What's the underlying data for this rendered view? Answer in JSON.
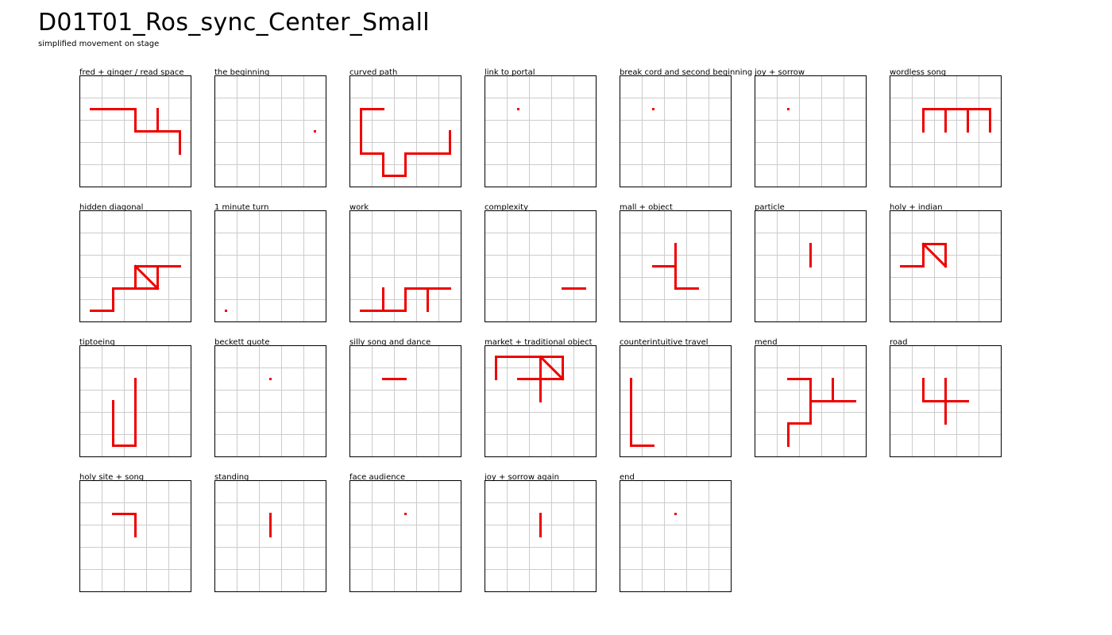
{
  "header": {
    "title": "D01T01_Ros_sync_Center_Small",
    "subtitle": "simplified movement on stage"
  },
  "colors": {
    "path": "#ee0000",
    "grid": "#cccccc",
    "frame": "#000000"
  },
  "grid_cells": 5,
  "panels": [
    {
      "label": "fred + ginger / read space",
      "segments": [
        [
          [
            0.5,
            1.5
          ],
          [
            2.5,
            1.5
          ]
        ],
        [
          [
            2.5,
            1.5
          ],
          [
            2.5,
            2.5
          ]
        ],
        [
          [
            2.5,
            2.5
          ],
          [
            4.5,
            2.5
          ]
        ],
        [
          [
            3.5,
            1.5
          ],
          [
            3.5,
            2.5
          ]
        ],
        [
          [
            4.5,
            2.5
          ],
          [
            4.5,
            3.5
          ]
        ]
      ],
      "dots": []
    },
    {
      "label": "the beginning",
      "segments": [],
      "dots": [
        [
          4.5,
          2.5
        ]
      ]
    },
    {
      "label": "curved path",
      "segments": [
        [
          [
            1.5,
            1.5
          ],
          [
            0.5,
            1.5
          ]
        ],
        [
          [
            0.5,
            1.5
          ],
          [
            0.5,
            3.5
          ]
        ],
        [
          [
            0.5,
            3.5
          ],
          [
            1.5,
            3.5
          ]
        ],
        [
          [
            1.5,
            3.5
          ],
          [
            1.5,
            4.5
          ]
        ],
        [
          [
            1.5,
            4.5
          ],
          [
            2.5,
            4.5
          ]
        ],
        [
          [
            2.5,
            4.5
          ],
          [
            2.5,
            3.5
          ]
        ],
        [
          [
            2.5,
            3.5
          ],
          [
            4.5,
            3.5
          ]
        ],
        [
          [
            4.5,
            3.5
          ],
          [
            4.5,
            2.5
          ]
        ]
      ],
      "dots": []
    },
    {
      "label": "link to portal",
      "segments": [],
      "dots": [
        [
          1.5,
          1.5
        ]
      ]
    },
    {
      "label": "break cord and second beginning",
      "segments": [],
      "dots": [
        [
          1.5,
          1.5
        ]
      ]
    },
    {
      "label": "joy + sorrow",
      "segments": [],
      "dots": [
        [
          1.5,
          1.5
        ]
      ]
    },
    {
      "label": "wordless song",
      "segments": [
        [
          [
            1.5,
            1.5
          ],
          [
            4.5,
            1.5
          ]
        ],
        [
          [
            1.5,
            1.5
          ],
          [
            1.5,
            2.5
          ]
        ],
        [
          [
            2.5,
            1.5
          ],
          [
            2.5,
            2.5
          ]
        ],
        [
          [
            3.5,
            1.5
          ],
          [
            3.5,
            2.5
          ]
        ],
        [
          [
            4.5,
            1.5
          ],
          [
            4.5,
            2.5
          ]
        ]
      ],
      "dots": []
    },
    {
      "label": "hidden diagonal",
      "segments": [
        [
          [
            0.5,
            4.5
          ],
          [
            1.5,
            4.5
          ]
        ],
        [
          [
            1.5,
            4.5
          ],
          [
            1.5,
            3.5
          ]
        ],
        [
          [
            1.5,
            3.5
          ],
          [
            3.5,
            3.5
          ]
        ],
        [
          [
            2.5,
            3.5
          ],
          [
            2.5,
            2.5
          ]
        ],
        [
          [
            2.5,
            2.5
          ],
          [
            4.5,
            2.5
          ]
        ],
        [
          [
            3.5,
            2.5
          ],
          [
            3.5,
            3.5
          ]
        ],
        [
          [
            2.5,
            2.5
          ],
          [
            3.5,
            3.5
          ]
        ]
      ],
      "dots": []
    },
    {
      "label": "1 minute turn",
      "segments": [],
      "dots": [
        [
          0.5,
          4.5
        ]
      ]
    },
    {
      "label": "work",
      "segments": [
        [
          [
            0.5,
            4.5
          ],
          [
            2.5,
            4.5
          ]
        ],
        [
          [
            1.5,
            3.5
          ],
          [
            1.5,
            4.5
          ]
        ],
        [
          [
            2.5,
            4.5
          ],
          [
            2.5,
            3.5
          ]
        ],
        [
          [
            2.5,
            3.5
          ],
          [
            4.5,
            3.5
          ]
        ],
        [
          [
            3.5,
            3.5
          ],
          [
            3.5,
            4.5
          ]
        ]
      ],
      "dots": []
    },
    {
      "label": "complexity",
      "segments": [
        [
          [
            3.5,
            3.5
          ],
          [
            4.5,
            3.5
          ]
        ]
      ],
      "dots": []
    },
    {
      "label": "mall + object",
      "segments": [
        [
          [
            1.5,
            2.5
          ],
          [
            2.5,
            2.5
          ]
        ],
        [
          [
            2.5,
            1.5
          ],
          [
            2.5,
            3.5
          ]
        ],
        [
          [
            2.5,
            3.5
          ],
          [
            3.5,
            3.5
          ]
        ]
      ],
      "dots": []
    },
    {
      "label": "particle",
      "segments": [
        [
          [
            2.5,
            1.5
          ],
          [
            2.5,
            2.5
          ]
        ]
      ],
      "dots": []
    },
    {
      "label": "holy + indian",
      "segments": [
        [
          [
            0.5,
            2.5
          ],
          [
            1.5,
            2.5
          ]
        ],
        [
          [
            1.5,
            2.5
          ],
          [
            1.5,
            1.5
          ]
        ],
        [
          [
            1.5,
            1.5
          ],
          [
            2.5,
            1.5
          ]
        ],
        [
          [
            2.5,
            1.5
          ],
          [
            2.5,
            2.5
          ]
        ],
        [
          [
            1.5,
            1.5
          ],
          [
            2.5,
            2.5
          ]
        ]
      ],
      "dots": []
    },
    {
      "label": "tiptoeing",
      "segments": [
        [
          [
            1.5,
            2.5
          ],
          [
            1.5,
            4.5
          ]
        ],
        [
          [
            1.5,
            4.5
          ],
          [
            2.5,
            4.5
          ]
        ],
        [
          [
            2.5,
            4.5
          ],
          [
            2.5,
            1.5
          ]
        ]
      ],
      "dots": []
    },
    {
      "label": "beckett quote",
      "segments": [],
      "dots": [
        [
          2.5,
          1.5
        ]
      ]
    },
    {
      "label": "silly song and dance",
      "segments": [
        [
          [
            1.5,
            1.5
          ],
          [
            2.5,
            1.5
          ]
        ]
      ],
      "dots": []
    },
    {
      "label": "market + traditional object",
      "segments": [
        [
          [
            0.5,
            1.5
          ],
          [
            0.5,
            0.5
          ]
        ],
        [
          [
            0.5,
            0.5
          ],
          [
            3.5,
            0.5
          ]
        ],
        [
          [
            3.5,
            0.5
          ],
          [
            3.5,
            1.5
          ]
        ],
        [
          [
            1.5,
            1.5
          ],
          [
            3.5,
            1.5
          ]
        ],
        [
          [
            2.5,
            0.5
          ],
          [
            2.5,
            2.5
          ]
        ],
        [
          [
            2.5,
            0.5
          ],
          [
            3.5,
            1.5
          ]
        ]
      ],
      "dots": []
    },
    {
      "label": "counterintuitive travel",
      "segments": [
        [
          [
            0.5,
            1.5
          ],
          [
            0.5,
            4.5
          ]
        ],
        [
          [
            0.5,
            4.5
          ],
          [
            1.5,
            4.5
          ]
        ]
      ],
      "dots": []
    },
    {
      "label": "mend",
      "segments": [
        [
          [
            1.5,
            1.5
          ],
          [
            2.5,
            1.5
          ]
        ],
        [
          [
            2.5,
            1.5
          ],
          [
            2.5,
            3.5
          ]
        ],
        [
          [
            2.5,
            2.5
          ],
          [
            4.5,
            2.5
          ]
        ],
        [
          [
            3.5,
            1.5
          ],
          [
            3.5,
            2.5
          ]
        ],
        [
          [
            2.5,
            3.5
          ],
          [
            1.5,
            3.5
          ]
        ],
        [
          [
            1.5,
            3.5
          ],
          [
            1.5,
            4.5
          ]
        ]
      ],
      "dots": []
    },
    {
      "label": "road",
      "segments": [
        [
          [
            1.5,
            1.5
          ],
          [
            1.5,
            2.5
          ]
        ],
        [
          [
            1.5,
            2.5
          ],
          [
            3.5,
            2.5
          ]
        ],
        [
          [
            2.5,
            1.5
          ],
          [
            2.5,
            3.5
          ]
        ]
      ],
      "dots": []
    },
    {
      "label": "holy site + song",
      "segments": [
        [
          [
            1.5,
            1.5
          ],
          [
            2.5,
            1.5
          ]
        ],
        [
          [
            2.5,
            1.5
          ],
          [
            2.5,
            2.5
          ]
        ]
      ],
      "dots": []
    },
    {
      "label": "standing",
      "segments": [
        [
          [
            2.5,
            1.5
          ],
          [
            2.5,
            2.5
          ]
        ]
      ],
      "dots": []
    },
    {
      "label": "face audience",
      "segments": [],
      "dots": [
        [
          2.5,
          1.5
        ]
      ]
    },
    {
      "label": "joy + sorrow again",
      "segments": [
        [
          [
            2.5,
            1.5
          ],
          [
            2.5,
            2.5
          ]
        ]
      ],
      "dots": []
    },
    {
      "label": "end",
      "segments": [],
      "dots": [
        [
          2.5,
          1.5
        ]
      ]
    }
  ]
}
